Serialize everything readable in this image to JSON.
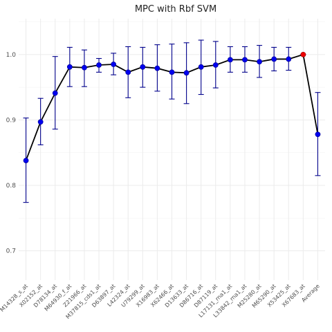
{
  "chart_data": {
    "type": "line",
    "title": "MPC with Rbf SVM",
    "xlabel": "",
    "ylabel": "",
    "ylim": [
      0.6552,
      1.0548
    ],
    "yticks": [
      0.7,
      0.8,
      0.9,
      1.0
    ],
    "grid": true,
    "categories": [
      "M14328_s_at",
      "X02152_at",
      "D78134_at",
      "M64930_f_at",
      "Z21966_at",
      "M37815_cds1_at",
      "D63897_at",
      "L42324_at",
      "U79299_at",
      "X16983_at",
      "X62466_at",
      "D13633_at",
      "D86716_at",
      "D87119_at",
      "L17131_rna1_at",
      "L33842_rna1_at",
      "M25280_at",
      "M65290_at",
      "X53425_at",
      "X67683_at",
      "Average"
    ],
    "series": [
      {
        "values": [
          0.838,
          0.897,
          0.941,
          0.981,
          0.98,
          0.984,
          0.985,
          0.973,
          0.981,
          0.979,
          0.973,
          0.972,
          0.981,
          0.984,
          0.992,
          0.992,
          0.989,
          0.993,
          0.993,
          1.0,
          0.878
        ],
        "error_low": [
          0.774,
          0.862,
          0.886,
          0.951,
          0.951,
          0.973,
          0.969,
          0.934,
          0.95,
          0.944,
          0.932,
          0.925,
          0.939,
          0.949,
          0.973,
          0.973,
          0.965,
          0.975,
          0.976,
          1.0,
          0.815
        ],
        "error_high": [
          0.903,
          0.933,
          0.997,
          1.011,
          1.007,
          0.994,
          1.002,
          1.012,
          1.011,
          1.015,
          1.016,
          1.018,
          1.022,
          1.02,
          1.012,
          1.012,
          1.014,
          1.011,
          1.011,
          1.0,
          0.942
        ],
        "line_color": "#000000",
        "point_color": "#0000ee",
        "errorbar_color": "#00008b"
      }
    ],
    "highlight": {
      "category": "X67683_at",
      "color": "#ee0000"
    },
    "disconnected_last_point": true
  }
}
